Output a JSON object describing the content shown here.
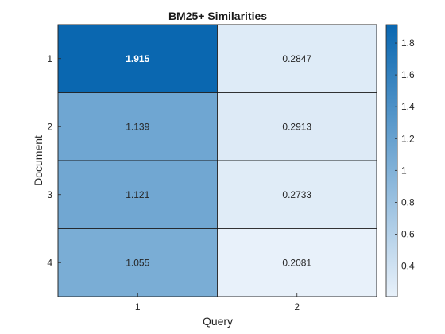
{
  "chart_data": {
    "type": "heatmap",
    "title": "BM25+ Similarities",
    "xlabel": "Query",
    "ylabel": "Document",
    "x_categories": [
      "1",
      "2"
    ],
    "y_categories": [
      "1",
      "2",
      "3",
      "4"
    ],
    "values": [
      [
        1.915,
        0.2847
      ],
      [
        1.139,
        0.2913
      ],
      [
        1.121,
        0.2733
      ],
      [
        1.055,
        0.2081
      ]
    ],
    "value_labels": [
      [
        "1.915",
        "0.2847"
      ],
      [
        "1.139",
        "0.2913"
      ],
      [
        "1.121",
        "0.2733"
      ],
      [
        "1.055",
        "0.2081"
      ]
    ],
    "colorbar": {
      "range": [
        0.2081,
        1.915
      ],
      "ticks": [
        "0.4",
        "0.6",
        "0.8",
        "1",
        "1.2",
        "1.4",
        "1.6",
        "1.8"
      ],
      "tick_values": [
        0.4,
        0.6,
        0.8,
        1.0,
        1.2,
        1.4,
        1.6,
        1.8
      ]
    },
    "colormap": {
      "low": "#e8f1fa",
      "high": "#0a67b0"
    }
  }
}
